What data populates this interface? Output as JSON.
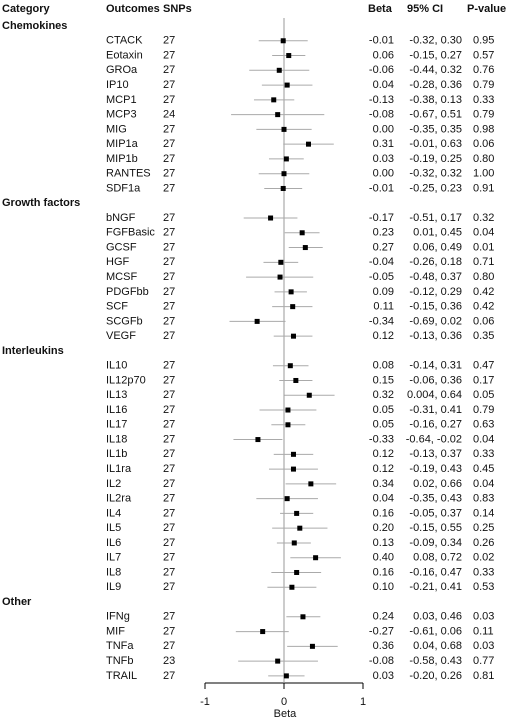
{
  "chart_data": {
    "type": "forest",
    "columns": [
      "Category",
      "Outcomes",
      "SNPs",
      "Beta",
      "95% CI",
      "P-value"
    ],
    "x_label": "Beta",
    "xlim": [
      -1,
      1
    ],
    "xticks": [
      -1,
      0,
      1
    ],
    "color": "#000000",
    "ci_color": "#aaaaaa",
    "groups": [
      {
        "name": "Chemokines",
        "outcomes": [
          "CTACK",
          "Eotaxin",
          "GROa",
          "IP10",
          "MCP1",
          "MCP3",
          "MIG",
          "MIP1a",
          "MIP1b",
          "RANTES",
          "SDF1a"
        ],
        "snps": [
          27,
          27,
          27,
          27,
          27,
          24,
          27,
          27,
          27,
          27,
          27
        ],
        "beta": [
          -0.01,
          0.06,
          -0.06,
          0.04,
          -0.13,
          -0.08,
          0,
          0.31,
          0.03,
          0,
          -0.01
        ],
        "beta_labels": [
          "-0.01",
          "0.06",
          "-0.06",
          "0.04",
          "-0.13",
          "-0.08",
          "0.00",
          "0.31",
          "0.03",
          "0.00",
          "-0.01"
        ],
        "ci_low": [
          -0.32,
          -0.15,
          -0.44,
          -0.28,
          -0.38,
          -0.67,
          -0.35,
          -0.01,
          -0.19,
          -0.32,
          -0.25
        ],
        "ci_high": [
          0.3,
          0.27,
          0.32,
          0.36,
          0.13,
          0.51,
          0.35,
          0.63,
          0.25,
          0.32,
          0.23
        ],
        "ci_labels": [
          "-0.32, 0.30",
          "-0.15, 0.27",
          "-0.44, 0.32",
          "-0.28, 0.36",
          "-0.38, 0.13",
          "-0.67, 0.51",
          "-0.35, 0.35",
          "-0.01, 0.63",
          "-0.19, 0.25",
          "-0.32, 0.32",
          "-0.25, 0.23"
        ],
        "p": [
          0.95,
          0.57,
          0.76,
          0.79,
          0.33,
          0.79,
          0.98,
          0.06,
          0.8,
          1,
          0.91
        ],
        "p_labels": [
          "0.95",
          "0.57",
          "0.76",
          "0.79",
          "0.33",
          "0.79",
          "0.98",
          "0.06",
          "0.80",
          "1.00",
          "0.91"
        ]
      },
      {
        "name": "Growth factors",
        "outcomes": [
          "bNGF",
          "FGFBasic",
          "GCSF",
          "HGF",
          "MCSF",
          "PDGFbb",
          "SCF",
          "SCGFb",
          "VEGF"
        ],
        "snps": [
          27,
          27,
          27,
          27,
          27,
          27,
          27,
          27,
          27
        ],
        "beta": [
          -0.17,
          0.23,
          0.27,
          -0.04,
          -0.05,
          0.09,
          0.11,
          -0.34,
          0.12
        ],
        "beta_labels": [
          "-0.17",
          "0.23",
          "0.27",
          "-0.04",
          "-0.05",
          "0.09",
          "0.11",
          "-0.34",
          "0.12"
        ],
        "ci_low": [
          -0.51,
          0.01,
          0.06,
          -0.26,
          -0.48,
          -0.12,
          -0.15,
          -0.69,
          -0.13
        ],
        "ci_high": [
          0.17,
          0.45,
          0.49,
          0.18,
          0.37,
          0.29,
          0.36,
          0.02,
          0.36
        ],
        "ci_labels": [
          "-0.51, 0.17",
          "0.01, 0.45",
          "0.06, 0.49",
          "-0.26, 0.18",
          "-0.48, 0.37",
          "-0.12, 0.29",
          "-0.15, 0.36",
          "-0.69, 0.02",
          "-0.13, 0.36"
        ],
        "p": [
          0.32,
          0.04,
          0.01,
          0.71,
          0.8,
          0.42,
          0.42,
          0.06,
          0.35
        ],
        "p_labels": [
          "0.32",
          "0.04",
          "0.01",
          "0.71",
          "0.80",
          "0.42",
          "0.42",
          "0.06",
          "0.35"
        ]
      },
      {
        "name": "Interleukins",
        "outcomes": [
          "IL10",
          "IL12p70",
          "IL13",
          "IL16",
          "IL17",
          "IL18",
          "IL1b",
          "IL1ra",
          "IL2",
          "IL2ra",
          "IL4",
          "IL5",
          "IL6",
          "IL7",
          "IL8",
          "IL9"
        ],
        "snps": [
          27,
          27,
          27,
          27,
          27,
          27,
          27,
          27,
          27,
          27,
          27,
          27,
          27,
          27,
          27,
          27
        ],
        "beta": [
          0.08,
          0.15,
          0.32,
          0.05,
          0.05,
          -0.33,
          0.12,
          0.12,
          0.34,
          0.04,
          0.16,
          0.2,
          0.13,
          0.4,
          0.16,
          0.1
        ],
        "beta_labels": [
          "0.08",
          "0.15",
          "0.32",
          "0.05",
          "0.05",
          "-0.33",
          "0.12",
          "0.12",
          "0.34",
          "0.04",
          "0.16",
          "0.20",
          "0.13",
          "0.40",
          "0.16",
          "0.10"
        ],
        "ci_low": [
          -0.14,
          -0.06,
          0.004,
          -0.31,
          -0.16,
          -0.64,
          -0.13,
          -0.19,
          0.02,
          -0.35,
          -0.05,
          -0.15,
          -0.09,
          0.08,
          -0.16,
          -0.21
        ],
        "ci_high": [
          0.31,
          0.36,
          0.64,
          0.41,
          0.27,
          -0.02,
          0.37,
          0.43,
          0.66,
          0.43,
          0.37,
          0.55,
          0.34,
          0.72,
          0.47,
          0.41
        ],
        "ci_labels": [
          "-0.14, 0.31",
          "-0.06, 0.36",
          "0.004, 0.64",
          "-0.31, 0.41",
          "-0.16, 0.27",
          "-0.64, -0.02",
          "-0.13, 0.37",
          "-0.19, 0.43",
          "0.02, 0.66",
          "-0.35, 0.43",
          "-0.05, 0.37",
          "-0.15, 0.55",
          "-0.09, 0.34",
          "0.08, 0.72",
          "-0.16, 0.47",
          "-0.21, 0.41"
        ],
        "p": [
          0.47,
          0.17,
          0.05,
          0.79,
          0.63,
          0.04,
          0.33,
          0.45,
          0.04,
          0.83,
          0.14,
          0.25,
          0.26,
          0.02,
          0.33,
          0.53
        ],
        "p_labels": [
          "0.47",
          "0.17",
          "0.05",
          "0.79",
          "0.63",
          "0.04",
          "0.33",
          "0.45",
          "0.04",
          "0.83",
          "0.14",
          "0.25",
          "0.26",
          "0.02",
          "0.33",
          "0.53"
        ]
      },
      {
        "name": "Other",
        "outcomes": [
          "IFNg",
          "MIF",
          "TNFa",
          "TNFb",
          "TRAIL"
        ],
        "snps": [
          27,
          27,
          27,
          23,
          27
        ],
        "beta": [
          0.24,
          -0.27,
          0.36,
          -0.08,
          0.03
        ],
        "beta_labels": [
          "0.24",
          "-0.27",
          "0.36",
          "-0.08",
          "0.03"
        ],
        "ci_low": [
          0.03,
          -0.61,
          0.04,
          -0.58,
          -0.2
        ],
        "ci_high": [
          0.46,
          0.06,
          0.68,
          0.43,
          0.26
        ],
        "ci_labels": [
          "0.03, 0.46",
          "-0.61, 0.06",
          "0.04, 0.68",
          "-0.58, 0.43",
          "-0.20, 0.26"
        ],
        "p": [
          0.03,
          0.11,
          0.03,
          0.77,
          0.81
        ],
        "p_labels": [
          "0.03",
          "0.11",
          "0.03",
          "0.77",
          "0.81"
        ]
      }
    ]
  }
}
